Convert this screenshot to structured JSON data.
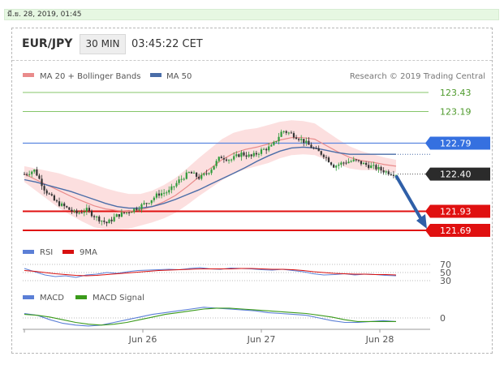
{
  "date_bar": "มี.ย. 28, 2019, 01:45",
  "header": {
    "pair": "EUR/JPY",
    "timeframe": "30 MIN",
    "time": "03:45:22 CET"
  },
  "legend": {
    "ma20_label": "MA 20 + Bollinger Bands",
    "ma50_label": "MA 50",
    "ma20_color": "#e98b8b",
    "ma50_color": "#4a6da8",
    "research": "Research © 2019 Trading Central"
  },
  "chart_data": [
    {
      "type": "line",
      "title": "EUR/JPY",
      "panel": "price",
      "y_range": [
        121.6,
        123.6
      ],
      "x_ticks": [
        "Jun 26",
        "Jun 27",
        "Jun 28"
      ],
      "levels": [
        {
          "value": 123.43,
          "label": "123.43",
          "kind": "target",
          "color": "#86c66a"
        },
        {
          "value": 123.19,
          "label": "123.19",
          "kind": "target",
          "color": "#86c66a"
        },
        {
          "value": 122.79,
          "label": "122.79",
          "kind": "resistance",
          "color": "#3570e0"
        },
        {
          "value": 122.4,
          "label": "122.40",
          "kind": "last",
          "color": "#2b2b2b"
        },
        {
          "value": 121.93,
          "label": "121.93",
          "kind": "support",
          "color": "#e01010"
        },
        {
          "value": 121.69,
          "label": "121.69",
          "kind": "support",
          "color": "#e01010"
        }
      ],
      "forecast_arrow": {
        "from": 122.4,
        "to": 121.69,
        "direction": "down",
        "color": "#2f5fa8"
      },
      "series": [
        {
          "name": "MA 20 + Bollinger Bands",
          "color": "#e98b8b",
          "values": [
            122.4,
            122.33,
            122.26,
            122.19,
            122.12,
            122.06,
            122.0,
            121.96,
            121.94,
            121.93,
            121.95,
            121.99,
            122.05,
            122.13,
            122.24,
            122.36,
            122.47,
            122.58,
            122.66,
            122.71,
            122.74,
            122.78,
            122.83,
            122.86,
            122.86,
            122.84,
            122.76,
            122.68,
            122.61,
            122.57,
            122.55,
            122.52,
            122.5
          ]
        },
        {
          "name": "MA 50",
          "color": "#4a6da8",
          "values": [
            122.33,
            122.3,
            122.26,
            122.22,
            122.18,
            122.13,
            122.08,
            122.03,
            121.99,
            121.97,
            121.97,
            121.99,
            122.03,
            122.08,
            122.14,
            122.2,
            122.27,
            122.34,
            122.41,
            122.48,
            122.56,
            122.63,
            122.69,
            122.73,
            122.74,
            122.73,
            122.7,
            122.67,
            122.65,
            122.65,
            122.65,
            122.65,
            122.65
          ]
        }
      ],
      "price_path": [
        122.4,
        122.45,
        122.2,
        122.05,
        121.98,
        121.9,
        121.95,
        121.85,
        121.78,
        121.88,
        121.92,
        121.98,
        122.05,
        122.15,
        122.18,
        122.32,
        122.42,
        122.35,
        122.45,
        122.62,
        122.58,
        122.66,
        122.62,
        122.7,
        122.75,
        122.95,
        122.9,
        122.82,
        122.72,
        122.64,
        122.5,
        122.55,
        122.57,
        122.52,
        122.48,
        122.43,
        122.4
      ]
    },
    {
      "type": "line",
      "panel": "rsi",
      "y_ticks": [
        70,
        50,
        30
      ],
      "series": [
        {
          "name": "RSI",
          "color": "#5b7fd6",
          "values": [
            60,
            52,
            44,
            40,
            42,
            38,
            44,
            46,
            50,
            48,
            52,
            55,
            56,
            57,
            58,
            57,
            60,
            62,
            59,
            58,
            61,
            60,
            59,
            57,
            56,
            58,
            55,
            52,
            47,
            44,
            45,
            47,
            44,
            46,
            45,
            43,
            42
          ]
        },
        {
          "name": "9MA",
          "color": "#d81010",
          "values": [
            55,
            53,
            50,
            47,
            45,
            43,
            42,
            43,
            45,
            47,
            49,
            51,
            53,
            55,
            56,
            57,
            58,
            59,
            59,
            59,
            59,
            60,
            60,
            59,
            58,
            58,
            57,
            55,
            52,
            50,
            48,
            47,
            46,
            46,
            45,
            45,
            44
          ]
        }
      ]
    },
    {
      "type": "line",
      "panel": "macd",
      "y_ticks": [
        0
      ],
      "series": [
        {
          "name": "MACD",
          "color": "#5b7fd6",
          "values": [
            0.05,
            0.03,
            -0.02,
            -0.06,
            -0.08,
            -0.09,
            -0.08,
            -0.05,
            -0.02,
            0.01,
            0.04,
            0.06,
            0.08,
            0.1,
            0.12,
            0.11,
            0.1,
            0.09,
            0.08,
            0.06,
            0.05,
            0.04,
            0.03,
            0.0,
            -0.03,
            -0.05,
            -0.05,
            -0.04,
            -0.03,
            -0.04
          ]
        },
        {
          "name": "MACD Signal",
          "color": "#3a9a1a",
          "values": [
            0.04,
            0.03,
            0.01,
            -0.02,
            -0.05,
            -0.07,
            -0.08,
            -0.07,
            -0.05,
            -0.02,
            0.01,
            0.04,
            0.06,
            0.08,
            0.1,
            0.11,
            0.11,
            0.1,
            0.09,
            0.08,
            0.07,
            0.06,
            0.05,
            0.03,
            0.01,
            -0.02,
            -0.04,
            -0.04,
            -0.04,
            -0.04
          ]
        }
      ]
    }
  ],
  "indicators": {
    "rsi_label": "RSI",
    "rsi_ma_label": "9MA",
    "macd_label": "MACD",
    "macd_signal_label": "MACD Signal"
  }
}
